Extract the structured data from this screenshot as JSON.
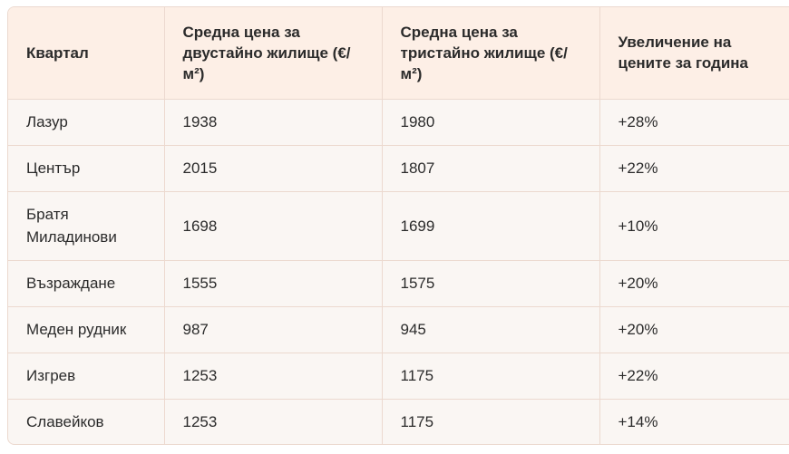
{
  "table": {
    "headers": [
      "Квартал",
      "Средна цена за двустайно жилище (€/м²)",
      "Средна цена за тристайно жилище (€/м²)",
      "Увеличение на цените за година"
    ],
    "rows": [
      [
        "Лазур",
        "1938",
        "1980",
        "+28%"
      ],
      [
        "Център",
        "2015",
        "1807",
        "+22%"
      ],
      [
        "Братя Миладинови",
        "1698",
        "1699",
        "+10%"
      ],
      [
        "Възраждане",
        "1555",
        "1575",
        "+20%"
      ],
      [
        "Меден рудник",
        "987",
        "945",
        "+20%"
      ],
      [
        "Изгрев",
        "1253",
        "1175",
        "+22%"
      ],
      [
        "Славейков",
        "1253",
        "1175",
        "+14%"
      ]
    ]
  },
  "colors": {
    "header_bg": "#fdefe6",
    "body_bg": "#faf6f3",
    "border": "#ecd9cf",
    "text": "#2b2b2b"
  }
}
